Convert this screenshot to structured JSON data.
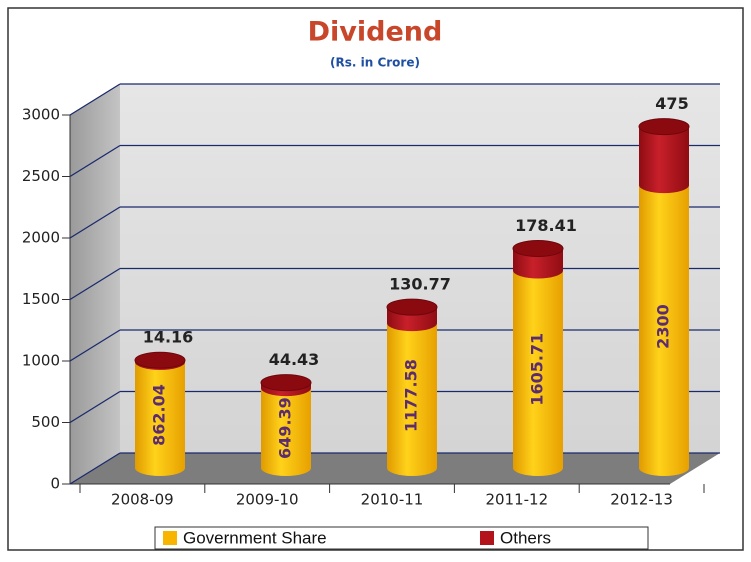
{
  "chart_data": {
    "type": "bar",
    "stacked": true,
    "title": "Dividend",
    "subtitle": "(Rs. in Crore)",
    "categories": [
      "2008-09",
      "2009-10",
      "2010-11",
      "2011-12",
      "2012-13"
    ],
    "series": [
      {
        "name": "Government Share",
        "color": "#f7b500",
        "values": [
          862.04,
          649.39,
          1177.58,
          1605.71,
          2300
        ]
      },
      {
        "name": "Others",
        "color": "#b3141c",
        "values": [
          14.16,
          44.43,
          130.77,
          178.41,
          475
        ]
      }
    ],
    "ylim": [
      0,
      3000
    ],
    "yticks": [
      0,
      500,
      1000,
      1500,
      2000,
      2500,
      3000
    ],
    "grid": true,
    "legend": "bottom"
  }
}
